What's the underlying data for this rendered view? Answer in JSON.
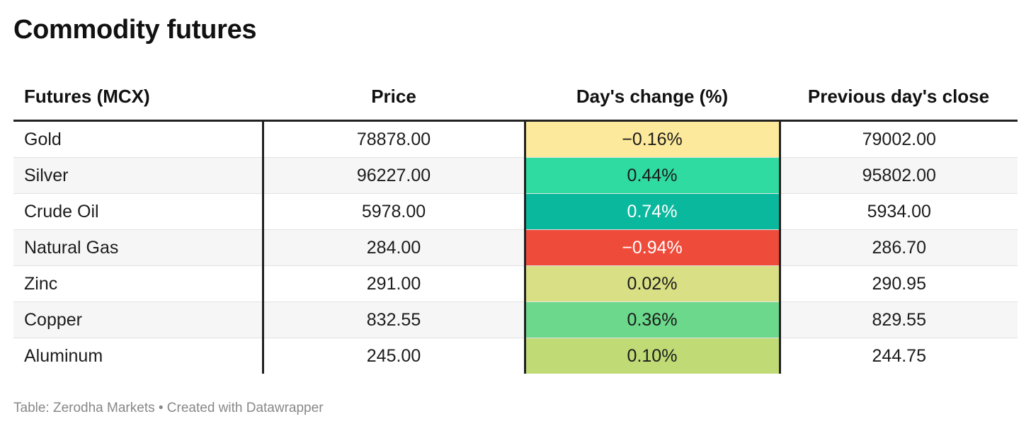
{
  "title": "Commodity futures",
  "footer": "Table: Zerodha Markets • Created with Datawrapper",
  "chart_data": {
    "type": "table",
    "title": "Commodity futures",
    "columns": [
      "Futures (MCX)",
      "Price",
      "Day's change (%)",
      "Previous day's close"
    ],
    "rows": [
      {
        "name": "Gold",
        "price": "78878.00",
        "change": "−0.16%",
        "prev_close": "79002.00",
        "change_value": -0.16,
        "change_color": "#fde99b",
        "change_text_color": "#1c1c1c"
      },
      {
        "name": "Silver",
        "price": "96227.00",
        "change": "0.44%",
        "prev_close": "95802.00",
        "change_value": 0.44,
        "change_color": "#2fdba0",
        "change_text_color": "#1c1c1c"
      },
      {
        "name": "Crude Oil",
        "price": "5978.00",
        "change": "0.74%",
        "prev_close": "5934.00",
        "change_value": 0.74,
        "change_color": "#0ab89d",
        "change_text_color": "#ffffff"
      },
      {
        "name": "Natural Gas",
        "price": "284.00",
        "change": "−0.94%",
        "prev_close": "286.70",
        "change_value": -0.94,
        "change_color": "#ef4b3b",
        "change_text_color": "#ffffff"
      },
      {
        "name": "Zinc",
        "price": "291.00",
        "change": "0.02%",
        "prev_close": "290.95",
        "change_value": 0.02,
        "change_color": "#d9df84",
        "change_text_color": "#1c1c1c"
      },
      {
        "name": "Copper",
        "price": "832.55",
        "change": "0.36%",
        "prev_close": "829.55",
        "change_value": 0.36,
        "change_color": "#6bd88b",
        "change_text_color": "#1c1c1c"
      },
      {
        "name": "Aluminum",
        "price": "245.00",
        "change": "0.10%",
        "prev_close": "244.75",
        "change_value": 0.1,
        "change_color": "#c0da76",
        "change_text_color": "#1c1c1c"
      }
    ]
  }
}
